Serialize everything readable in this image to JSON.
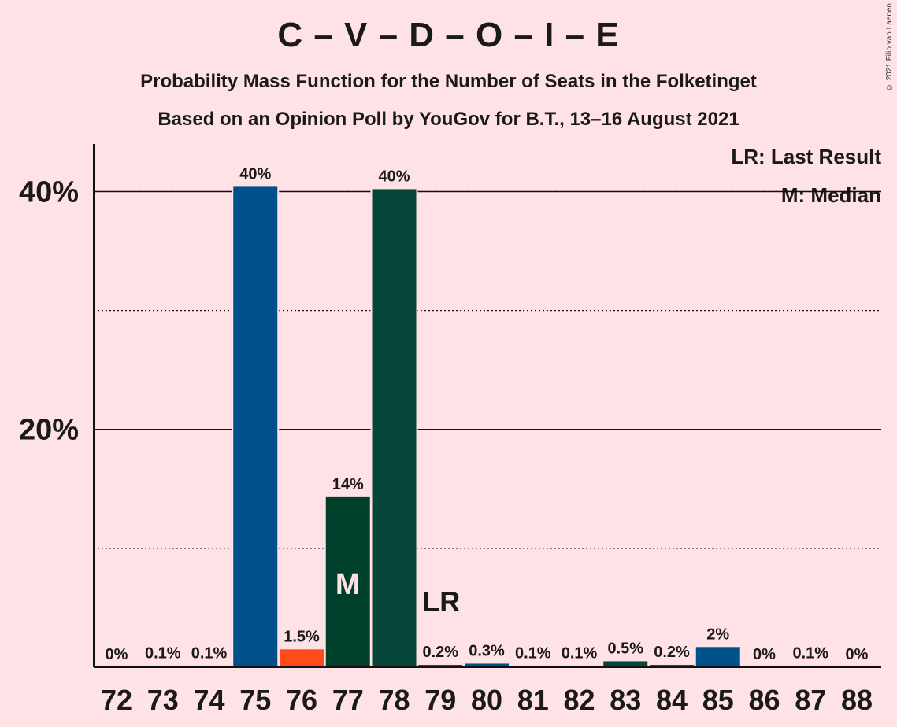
{
  "title": "C – V – D – O – I – E",
  "subtitle1": "Probability Mass Function for the Number of Seats in the Folketinget",
  "subtitle2": "Based on an Opinion Poll by YouGov for B.T., 13–16 August 2021",
  "copyright": "© 2021 Filip van Laenen",
  "legend": {
    "last_result": "LR: Last Result",
    "median": "M: Median"
  },
  "chart_data": {
    "type": "bar",
    "categories": [
      "72",
      "73",
      "74",
      "75",
      "76",
      "77",
      "78",
      "79",
      "80",
      "81",
      "82",
      "83",
      "84",
      "85",
      "86",
      "87",
      "88"
    ],
    "values": [
      0.0,
      0.1,
      0.1,
      40.4,
      1.5,
      14.3,
      40.2,
      0.2,
      0.3,
      0.1,
      0.1,
      0.5,
      0.2,
      1.7,
      0.0,
      0.1,
      0.0
    ],
    "labels": [
      "0%",
      "0.1%",
      "0.1%",
      "40%",
      "1.5%",
      "14%",
      "40%",
      "0.2%",
      "0.3%",
      "0.1%",
      "0.1%",
      "0.5%",
      "0.2%",
      "2%",
      "0%",
      "0.1%",
      "0%"
    ],
    "colors": [
      "#00508a",
      "#00508a",
      "#00508a",
      "#00508a",
      "#ff4b1a",
      "#003f2a",
      "#05453a",
      "#00508a",
      "#00508a",
      "#00508a",
      "#00508a",
      "#05453a",
      "#00508a",
      "#00508a",
      "#00508a",
      "#00508a",
      "#00508a"
    ],
    "ylim": [
      0,
      44
    ],
    "yticks": [
      {
        "value": 20,
        "label": "20%"
      },
      {
        "value": 40,
        "label": "40%"
      }
    ],
    "minor_gridlines": [
      10,
      30
    ],
    "median_seat": "77",
    "median_marker": "M",
    "last_result_seat": "79",
    "last_result_marker": "LR",
    "last_result_line_value": 40
  }
}
